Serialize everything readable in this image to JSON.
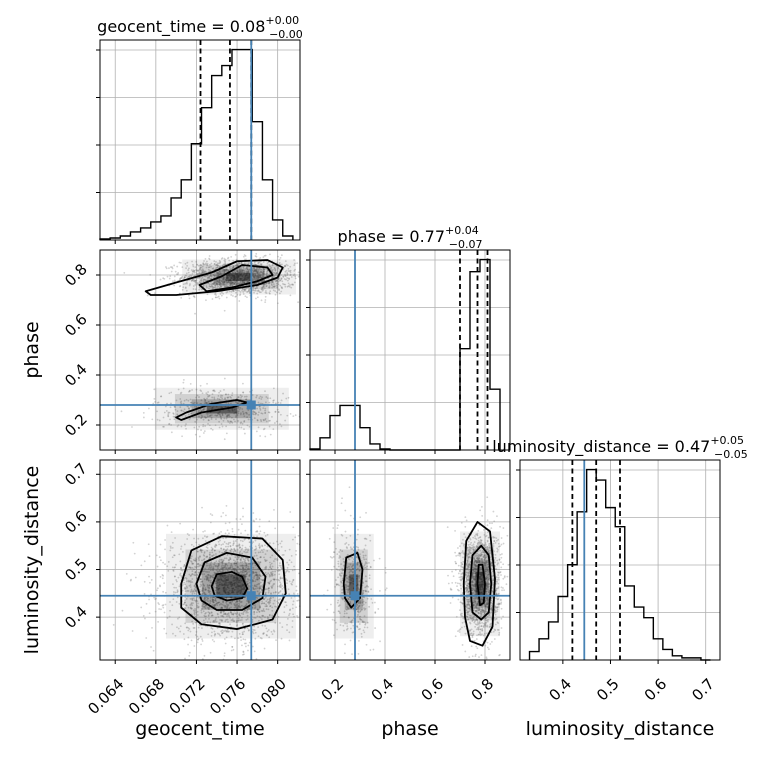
{
  "colors": {
    "truth": "#4682b4",
    "hist": "#000000",
    "grid": "#b0b0b0",
    "points": "#7f7f7f"
  },
  "params": [
    "geocent_time",
    "phase",
    "luminosity_distance"
  ],
  "truths": {
    "geocent_time": 0.0774,
    "phase": 0.28,
    "luminosity_distance": 0.445
  },
  "axes": {
    "geocent_time": {
      "range": [
        0.0625,
        0.0822
      ],
      "ticks": [
        0.064,
        0.068,
        0.072,
        0.076,
        0.08
      ],
      "ticklabels": [
        "0.064",
        "0.068",
        "0.072",
        "0.076",
        "0.080"
      ]
    },
    "phase": {
      "range": [
        0.1,
        0.9
      ],
      "ticks": [
        0.2,
        0.4,
        0.6,
        0.8
      ],
      "ticklabels": [
        "0.2",
        "0.4",
        "0.6",
        "0.8"
      ]
    },
    "luminosity_distance": {
      "range": [
        0.31,
        0.73
      ],
      "ticks": [
        0.4,
        0.5,
        0.6,
        0.7
      ],
      "ticklabels": [
        "0.4",
        "0.5",
        "0.6",
        "0.7"
      ]
    }
  },
  "titles": {
    "geocent_time": {
      "prefix": "geocent_time = 0.08",
      "plus": "+0.00",
      "minus": "−0.00"
    },
    "phase": {
      "prefix": "phase = 0.77",
      "plus": "+0.04",
      "minus": "−0.07"
    },
    "luminosity_distance": {
      "prefix": "luminosity_distance = 0.47",
      "plus": "+0.05",
      "minus": "−0.05"
    }
  },
  "chart_data": {
    "type": "corner",
    "grid": true,
    "marginals": [
      {
        "param": "geocent_time",
        "quantile_lines": [
          0.0724,
          0.0753,
          0.0774
        ],
        "hist": {
          "edges": [
            0.0625,
            0.0635,
            0.0645,
            0.0655,
            0.0665,
            0.0675,
            0.0685,
            0.0695,
            0.0705,
            0.0715,
            0.0725,
            0.0735,
            0.0745,
            0.0755,
            0.0765,
            0.0775,
            0.0785,
            0.0795,
            0.0805,
            0.0815
          ],
          "counts": [
            0.5,
            1,
            2,
            4,
            6,
            9,
            12,
            21,
            30,
            48,
            66,
            82,
            87,
            95,
            95,
            59,
            30,
            10,
            2
          ]
        }
      },
      {
        "param": "phase",
        "quantile_lines": [
          0.7,
          0.77,
          0.81
        ],
        "hist": {
          "edges": [
            0.1,
            0.14,
            0.18,
            0.22,
            0.26,
            0.3,
            0.34,
            0.38,
            0.42,
            0.46,
            0.5,
            0.54,
            0.58,
            0.62,
            0.66,
            0.7,
            0.74,
            0.78,
            0.82,
            0.86
          ],
          "counts": [
            0.5,
            6,
            17,
            22,
            22,
            11,
            3,
            0.5,
            0,
            0,
            0,
            0,
            0,
            0,
            0,
            50,
            88,
            94,
            30
          ]
        }
      },
      {
        "param": "luminosity_distance",
        "quantile_lines": [
          0.42,
          0.47,
          0.52
        ],
        "hist": {
          "edges": [
            0.33,
            0.35,
            0.37,
            0.39,
            0.41,
            0.43,
            0.45,
            0.47,
            0.49,
            0.51,
            0.53,
            0.55,
            0.57,
            0.59,
            0.61,
            0.63,
            0.65,
            0.67,
            0.69,
            0.71
          ],
          "counts": [
            4,
            10,
            18,
            30,
            45,
            70,
            90,
            85,
            72,
            63,
            35,
            25,
            20,
            10,
            5,
            2,
            1,
            1,
            0
          ]
        }
      }
    ],
    "pairs": [
      {
        "x": "geocent_time",
        "y": "phase",
        "modes": [
          {
            "cx": 0.0762,
            "cy": 0.792,
            "sx": 0.0028,
            "sy": 0.035,
            "w": 0.75
          },
          {
            "cx": 0.0745,
            "cy": 0.265,
            "sx": 0.0033,
            "sy": 0.042,
            "w": 0.25
          }
        ],
        "contours": [
          {
            "level": 1,
            "pts": [
              [
                0.0723,
                0.76
              ],
              [
                0.0745,
                0.795
              ],
              [
                0.0765,
                0.84
              ],
              [
                0.079,
                0.83
              ],
              [
                0.0795,
                0.8
              ],
              [
                0.078,
                0.775
              ],
              [
                0.0755,
                0.75
              ],
              [
                0.073,
                0.735
              ]
            ]
          },
          {
            "level": 2,
            "pts": [
              [
                0.067,
                0.735
              ],
              [
                0.07,
                0.77
              ],
              [
                0.0735,
                0.81
              ],
              [
                0.076,
                0.855
              ],
              [
                0.079,
                0.86
              ],
              [
                0.0805,
                0.83
              ],
              [
                0.08,
                0.79
              ],
              [
                0.078,
                0.76
              ],
              [
                0.074,
                0.735
              ],
              [
                0.07,
                0.72
              ],
              [
                0.0675,
                0.72
              ]
            ]
          },
          {
            "level": 3,
            "pts": [
              [
                0.0705,
                0.22
              ],
              [
                0.0725,
                0.25
              ],
              [
                0.0755,
                0.27
              ],
              [
                0.077,
                0.29
              ],
              [
                0.076,
                0.3
              ],
              [
                0.0735,
                0.285
              ],
              [
                0.071,
                0.25
              ],
              [
                0.07,
                0.23
              ]
            ]
          }
        ]
      },
      {
        "x": "geocent_time",
        "y": "luminosity_distance",
        "modes": [
          {
            "cx": 0.0754,
            "cy": 0.465,
            "sx": 0.0032,
            "sy": 0.055,
            "w": 1.0
          }
        ],
        "contours": [
          {
            "level": 1,
            "pts": [
              [
                0.0735,
                0.465
              ],
              [
                0.074,
                0.49
              ],
              [
                0.0755,
                0.495
              ],
              [
                0.0765,
                0.485
              ],
              [
                0.077,
                0.46
              ],
              [
                0.0765,
                0.44
              ],
              [
                0.075,
                0.435
              ],
              [
                0.0738,
                0.445
              ]
            ]
          },
          {
            "level": 2,
            "pts": [
              [
                0.072,
                0.47
              ],
              [
                0.0728,
                0.515
              ],
              [
                0.075,
                0.535
              ],
              [
                0.0775,
                0.525
              ],
              [
                0.0788,
                0.485
              ],
              [
                0.0785,
                0.44
              ],
              [
                0.0765,
                0.415
              ],
              [
                0.074,
                0.415
              ],
              [
                0.0725,
                0.435
              ]
            ]
          },
          {
            "level": 3,
            "pts": [
              [
                0.0705,
                0.47
              ],
              [
                0.0715,
                0.54
              ],
              [
                0.0745,
                0.57
              ],
              [
                0.0785,
                0.565
              ],
              [
                0.0805,
                0.52
              ],
              [
                0.0808,
                0.45
              ],
              [
                0.0795,
                0.395
              ],
              [
                0.076,
                0.375
              ],
              [
                0.0725,
                0.385
              ],
              [
                0.0705,
                0.42
              ]
            ]
          }
        ]
      },
      {
        "x": "phase",
        "y": "luminosity_distance",
        "modes": [
          {
            "cx": 0.78,
            "cy": 0.47,
            "sx": 0.04,
            "sy": 0.055,
            "w": 0.78
          },
          {
            "cx": 0.275,
            "cy": 0.465,
            "sx": 0.04,
            "sy": 0.055,
            "w": 0.22
          }
        ],
        "contours": [
          {
            "level": 1,
            "pts": [
              [
                0.77,
                0.47
              ],
              [
                0.775,
                0.51
              ],
              [
                0.79,
                0.51
              ],
              [
                0.8,
                0.47
              ],
              [
                0.795,
                0.43
              ],
              [
                0.78,
                0.425
              ]
            ]
          },
          {
            "level": 2,
            "pts": [
              [
                0.74,
                0.47
              ],
              [
                0.75,
                0.53
              ],
              [
                0.785,
                0.55
              ],
              [
                0.815,
                0.53
              ],
              [
                0.825,
                0.47
              ],
              [
                0.815,
                0.41
              ],
              [
                0.785,
                0.395
              ],
              [
                0.75,
                0.41
              ]
            ]
          },
          {
            "level": 3,
            "pts": [
              [
                0.715,
                0.47
              ],
              [
                0.725,
                0.56
              ],
              [
                0.77,
                0.6
              ],
              [
                0.82,
                0.58
              ],
              [
                0.84,
                0.48
              ],
              [
                0.83,
                0.38
              ],
              [
                0.79,
                0.34
              ],
              [
                0.74,
                0.35
              ],
              [
                0.72,
                0.4
              ]
            ]
          },
          {
            "level": 4,
            "pts": [
              [
                0.235,
                0.47
              ],
              [
                0.245,
                0.525
              ],
              [
                0.29,
                0.535
              ],
              [
                0.31,
                0.5
              ],
              [
                0.3,
                0.44
              ],
              [
                0.265,
                0.42
              ],
              [
                0.24,
                0.44
              ]
            ]
          }
        ]
      }
    ]
  }
}
